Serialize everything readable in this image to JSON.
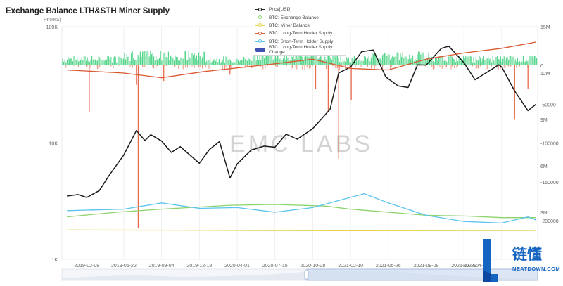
{
  "title": "Exchange Balance LTH&STH Miner Supply",
  "left_axis_title": "Price($)",
  "watermark": "EMC LABS",
  "left_axis_ticks": [
    "100K",
    "10K",
    "1K"
  ],
  "right_axis_balance_ticks": [
    "0",
    "-50000",
    "-100000",
    "-150000",
    "-200000"
  ],
  "right_axis_supply_ticks": [
    "15M",
    "12M",
    "9M",
    "6M",
    "3M"
  ],
  "x_ticks": [
    "2019-02-08",
    "2019-05-22",
    "2019-09-04",
    "2019-12-18",
    "2020-04-01",
    "2020-07-15",
    "2020-10-28",
    "2021-02-10",
    "2021-05-26",
    "2021-09-08",
    "2021-12-22",
    "2022-04-06",
    "2"
  ],
  "legend": [
    {
      "label": "Price[USD]",
      "color": "#222222",
      "kind": "line-dot"
    },
    {
      "label": "BTC: Exchange Balance",
      "color": "#8bd36a",
      "kind": "line-dot"
    },
    {
      "label": "BTC: Miner Balance",
      "color": "#e8d24a",
      "kind": "line-dot"
    },
    {
      "label": "BTC: Long-Term Holder Supply",
      "color": "#e0643a",
      "kind": "line-dot"
    },
    {
      "label": "BTC: Short-Term Holder Supply",
      "color": "#5bc3ee",
      "kind": "line-dot"
    },
    {
      "label": "BTC: Long-Term Holder Supply Change",
      "color": "#3f51b5",
      "kind": "rect"
    }
  ],
  "logo": {
    "text": "链懂",
    "url": "NEATDOWN.COM"
  },
  "colors": {
    "price": "#1a1a1a",
    "exchange": "#8bd36a",
    "miner": "#e8d24a",
    "lth": "#d9592e",
    "sth": "#5bc3ee",
    "change_pos": "#2ecc71",
    "change_neg": "#e8502e",
    "grid": "#ececec",
    "axis_text": "#666666",
    "brand": "#1565c0"
  },
  "chart_data": {
    "type": "line",
    "title": "Exchange Balance LTH&STH Miner Supply",
    "x_range": [
      "2018-12-01",
      "2022-07-15"
    ],
    "y_left": {
      "label": "Price($)",
      "scale": "log",
      "range": [
        1000,
        100000
      ]
    },
    "y_right_balance": {
      "range": [
        -200000,
        0
      ]
    },
    "y_right_supply": {
      "range": [
        3000000,
        15000000
      ]
    },
    "series": [
      {
        "name": "Price[USD]",
        "axis": "left",
        "points": [
          [
            "2018-12-15",
            3500
          ],
          [
            "2019-01-15",
            3600
          ],
          [
            "2019-02-08",
            3400
          ],
          [
            "2019-03-15",
            3900
          ],
          [
            "2019-04-10",
            5200
          ],
          [
            "2019-05-22",
            7900
          ],
          [
            "2019-06-26",
            12800
          ],
          [
            "2019-07-20",
            10500
          ],
          [
            "2019-08-05",
            11800
          ],
          [
            "2019-09-04",
            10400
          ],
          [
            "2019-10-01",
            8300
          ],
          [
            "2019-10-26",
            9300
          ],
          [
            "2019-12-18",
            6700
          ],
          [
            "2020-01-15",
            8800
          ],
          [
            "2020-02-12",
            10300
          ],
          [
            "2020-03-12",
            5000
          ],
          [
            "2020-04-01",
            6600
          ],
          [
            "2020-05-10",
            8700
          ],
          [
            "2020-06-15",
            9400
          ],
          [
            "2020-07-15",
            9200
          ],
          [
            "2020-08-15",
            11900
          ],
          [
            "2020-09-15",
            10800
          ],
          [
            "2020-10-28",
            13300
          ],
          [
            "2020-12-15",
            19500
          ],
          [
            "2021-01-08",
            40000
          ],
          [
            "2021-02-10",
            45000
          ],
          [
            "2021-03-13",
            61000
          ],
          [
            "2021-04-14",
            63000
          ],
          [
            "2021-05-19",
            37000
          ],
          [
            "2021-06-22",
            31000
          ],
          [
            "2021-07-20",
            30000
          ],
          [
            "2021-08-15",
            47000
          ],
          [
            "2021-09-08",
            46800
          ],
          [
            "2021-10-20",
            65000
          ],
          [
            "2021-11-10",
            68000
          ],
          [
            "2021-12-22",
            49000
          ],
          [
            "2022-01-22",
            35000
          ],
          [
            "2022-03-29",
            47000
          ],
          [
            "2022-04-06",
            45000
          ],
          [
            "2022-05-12",
            28000
          ],
          [
            "2022-06-18",
            19000
          ],
          [
            "2022-07-10",
            21500
          ]
        ]
      },
      {
        "name": "BTC: Exchange Balance",
        "axis": "right_supply",
        "points": [
          [
            "2018-12-15",
            2700000
          ],
          [
            "2019-05-01",
            3000000
          ],
          [
            "2019-09-04",
            3200000
          ],
          [
            "2020-03-12",
            3450000
          ],
          [
            "2020-07-15",
            3500000
          ],
          [
            "2020-12-01",
            3400000
          ],
          [
            "2021-02-10",
            3200000
          ],
          [
            "2021-05-26",
            3000000
          ],
          [
            "2021-09-08",
            2800000
          ],
          [
            "2022-01-01",
            2750000
          ],
          [
            "2022-04-06",
            2650000
          ],
          [
            "2022-07-10",
            2650000
          ]
        ]
      },
      {
        "name": "BTC: Miner Balance",
        "axis": "right_supply",
        "points": [
          [
            "2018-12-15",
            1850000
          ],
          [
            "2020-01-01",
            1830000
          ],
          [
            "2021-01-01",
            1800000
          ],
          [
            "2022-07-10",
            1820000
          ]
        ]
      },
      {
        "name": "BTC: Long-Term Holder Supply",
        "axis": "right_supply",
        "points": [
          [
            "2018-12-15",
            12200000
          ],
          [
            "2019-05-22",
            12000000
          ],
          [
            "2019-09-04",
            11700000
          ],
          [
            "2020-01-01",
            12100000
          ],
          [
            "2020-07-15",
            12600000
          ],
          [
            "2020-10-28",
            12900000
          ],
          [
            "2021-02-10",
            12300000
          ],
          [
            "2021-05-26",
            12200000
          ],
          [
            "2021-09-08",
            12900000
          ],
          [
            "2021-12-22",
            13300000
          ],
          [
            "2022-04-06",
            13600000
          ],
          [
            "2022-07-10",
            14000000
          ]
        ]
      },
      {
        "name": "BTC: Short-Term Holder Supply",
        "axis": "right_supply",
        "points": [
          [
            "2018-12-15",
            3100000
          ],
          [
            "2019-05-22",
            3200000
          ],
          [
            "2019-09-04",
            3600000
          ],
          [
            "2019-12-18",
            3250000
          ],
          [
            "2020-04-01",
            3300000
          ],
          [
            "2020-07-15",
            3000000
          ],
          [
            "2020-10-28",
            3300000
          ],
          [
            "2021-01-15",
            3800000
          ],
          [
            "2021-03-20",
            4200000
          ],
          [
            "2021-05-26",
            3600000
          ],
          [
            "2021-09-08",
            2800000
          ],
          [
            "2021-12-22",
            2400000
          ],
          [
            "2022-04-06",
            2300000
          ],
          [
            "2022-06-18",
            2700000
          ],
          [
            "2022-07-10",
            2500000
          ]
        ]
      },
      {
        "name": "BTC: Long-Term Holder Supply Change",
        "axis": "right_balance",
        "points": [
          [
            "2019-02-15",
            -60000
          ],
          [
            "2019-06-26",
            -25000
          ],
          [
            "2019-07-01",
            -210000
          ],
          [
            "2019-09-10",
            -20000
          ],
          [
            "2020-03-12",
            -12000
          ],
          [
            "2020-11-05",
            -30000
          ],
          [
            "2020-12-10",
            -60000
          ],
          [
            "2021-01-08",
            -120000
          ],
          [
            "2021-02-12",
            -45000
          ],
          [
            "2022-05-12",
            -70000
          ],
          [
            "2022-06-18",
            -30000
          ]
        ]
      }
    ]
  }
}
